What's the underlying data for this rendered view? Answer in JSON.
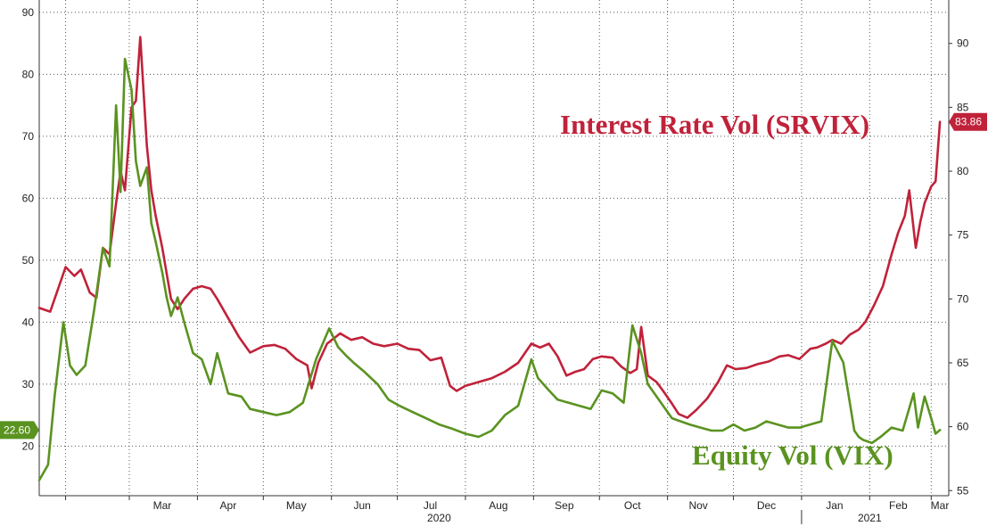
{
  "chart_data": {
    "type": "line",
    "title": "",
    "left_axis": {
      "ylim": [
        12,
        92
      ],
      "ticks": [
        "20",
        "30",
        "40",
        "50",
        "60",
        "70",
        "80",
        "90"
      ]
    },
    "right_axis": {
      "ylim": [
        54.6,
        93.4
      ],
      "ticks": [
        "55",
        "60",
        "65",
        "70",
        "75",
        "80",
        "85",
        "90"
      ]
    },
    "month_labels": [
      "Mar",
      "Apr",
      "May",
      "Jun",
      "Jul",
      "Aug",
      "Sep",
      "Oct",
      "Nov",
      "Dec",
      "Jan",
      "Feb",
      "Mar"
    ],
    "year_labels": [
      "2020",
      "2021"
    ],
    "grid": true,
    "series": [
      {
        "name": "Interest Rate Vol (SRVIX)",
        "axis": "right",
        "color": "#c0223a",
        "last_value_label": "83.86",
        "x": [
          "2020-01-20",
          "2020-01-25",
          "2020-02-01",
          "2020-02-05",
          "2020-02-08",
          "2020-02-12",
          "2020-02-15",
          "2020-02-18",
          "2020-02-21",
          "2020-02-24",
          "2020-02-26",
          "2020-02-28",
          "2020-03-02",
          "2020-03-04",
          "2020-03-06",
          "2020-03-09",
          "2020-03-11",
          "2020-03-13",
          "2020-03-16",
          "2020-03-18",
          "2020-03-20",
          "2020-03-23",
          "2020-03-26",
          "2020-03-30",
          "2020-04-03",
          "2020-04-07",
          "2020-04-10",
          "2020-04-15",
          "2020-04-20",
          "2020-04-25",
          "2020-05-01",
          "2020-05-06",
          "2020-05-11",
          "2020-05-16",
          "2020-05-21",
          "2020-05-23",
          "2020-05-26",
          "2020-05-30",
          "2020-06-05",
          "2020-06-10",
          "2020-06-15",
          "2020-06-20",
          "2020-06-25",
          "2020-07-01",
          "2020-07-06",
          "2020-07-11",
          "2020-07-16",
          "2020-07-21",
          "2020-07-25",
          "2020-07-28",
          "2020-08-01",
          "2020-08-07",
          "2020-08-13",
          "2020-08-19",
          "2020-08-25",
          "2020-08-31",
          "2020-09-04",
          "2020-09-08",
          "2020-09-12",
          "2020-09-16",
          "2020-09-20",
          "2020-09-24",
          "2020-09-28",
          "2020-10-02",
          "2020-10-07",
          "2020-10-11",
          "2020-10-15",
          "2020-10-18",
          "2020-10-20",
          "2020-10-23",
          "2020-10-27",
          "2020-10-30",
          "2020-11-03",
          "2020-11-06",
          "2020-11-10",
          "2020-11-14",
          "2020-11-19",
          "2020-11-24",
          "2020-11-28",
          "2020-12-02",
          "2020-12-07",
          "2020-12-12",
          "2020-12-17",
          "2020-12-22",
          "2020-12-26",
          "2020-12-31",
          "2021-01-05",
          "2021-01-08",
          "2021-01-12",
          "2021-01-15",
          "2021-01-19",
          "2021-01-23",
          "2021-01-27",
          "2021-01-30",
          "2021-02-03",
          "2021-02-07",
          "2021-02-11",
          "2021-02-14",
          "2021-02-17",
          "2021-02-19",
          "2021-02-22",
          "2021-02-24",
          "2021-02-26",
          "2021-03-01",
          "2021-03-03",
          "2021-03-05"
        ],
        "values": [
          69.3,
          69.0,
          72.5,
          71.8,
          72.3,
          70.5,
          70.1,
          74.0,
          73.5,
          77.5,
          80.0,
          78.5,
          85.0,
          85.5,
          90.5,
          82.0,
          78.5,
          76.5,
          74.0,
          72.0,
          70.0,
          69.2,
          70.0,
          70.8,
          71.0,
          70.8,
          70.0,
          68.5,
          67.0,
          65.8,
          66.3,
          66.4,
          66.1,
          65.3,
          64.8,
          63.0,
          65.0,
          66.5,
          67.3,
          66.8,
          67.0,
          66.5,
          66.3,
          66.5,
          66.1,
          66.0,
          65.2,
          65.4,
          63.2,
          62.8,
          63.2,
          63.5,
          63.8,
          64.3,
          65.0,
          66.5,
          66.2,
          66.5,
          65.5,
          64.0,
          64.3,
          64.5,
          65.3,
          65.5,
          65.4,
          64.7,
          64.2,
          64.5,
          67.8,
          64.0,
          63.5,
          62.8,
          61.8,
          61.0,
          60.7,
          61.3,
          62.2,
          63.5,
          64.8,
          64.5,
          64.6,
          64.9,
          65.1,
          65.5,
          65.6,
          65.3,
          66.1,
          66.2,
          66.5,
          66.8,
          66.5,
          67.2,
          67.6,
          68.2,
          69.5,
          71.0,
          73.5,
          75.2,
          76.5,
          78.5,
          74.0,
          76.0,
          77.5,
          78.8,
          79.2,
          83.86
        ]
      },
      {
        "name": "Equity Vol (VIX)",
        "axis": "left",
        "color": "#5a9320",
        "last_value_label": "22.60",
        "x": [
          "2020-01-20",
          "2020-01-24",
          "2020-01-27",
          "2020-01-31",
          "2020-02-03",
          "2020-02-06",
          "2020-02-10",
          "2020-02-14",
          "2020-02-18",
          "2020-02-21",
          "2020-02-24",
          "2020-02-26",
          "2020-02-28",
          "2020-03-02",
          "2020-03-04",
          "2020-03-06",
          "2020-03-09",
          "2020-03-11",
          "2020-03-13",
          "2020-03-16",
          "2020-03-18",
          "2020-03-20",
          "2020-03-23",
          "2020-03-26",
          "2020-03-30",
          "2020-04-03",
          "2020-04-07",
          "2020-04-10",
          "2020-04-15",
          "2020-04-21",
          "2020-04-25",
          "2020-05-01",
          "2020-05-07",
          "2020-05-13",
          "2020-05-19",
          "2020-05-25",
          "2020-05-31",
          "2020-06-04",
          "2020-06-08",
          "2020-06-11",
          "2020-06-16",
          "2020-06-22",
          "2020-06-27",
          "2020-07-02",
          "2020-07-08",
          "2020-07-14",
          "2020-07-20",
          "2020-07-26",
          "2020-08-01",
          "2020-08-07",
          "2020-08-13",
          "2020-08-19",
          "2020-08-25",
          "2020-08-31",
          "2020-09-03",
          "2020-09-08",
          "2020-09-12",
          "2020-09-17",
          "2020-09-22",
          "2020-09-27",
          "2020-10-02",
          "2020-10-07",
          "2020-10-12",
          "2020-10-16",
          "2020-10-20",
          "2020-10-23",
          "2020-10-28",
          "2020-10-30",
          "2020-11-03",
          "2020-11-07",
          "2020-11-11",
          "2020-11-16",
          "2020-11-21",
          "2020-11-26",
          "2020-12-01",
          "2020-12-06",
          "2020-12-11",
          "2020-12-16",
          "2020-12-21",
          "2020-12-26",
          "2020-12-31",
          "2021-01-05",
          "2021-01-10",
          "2021-01-15",
          "2021-01-20",
          "2021-01-25",
          "2021-01-27",
          "2021-01-29",
          "2021-02-02",
          "2021-02-06",
          "2021-02-11",
          "2021-02-16",
          "2021-02-21",
          "2021-02-23",
          "2021-02-26",
          "2021-03-01",
          "2021-03-03",
          "2021-03-05"
        ],
        "values": [
          14.5,
          17.0,
          28.0,
          40.0,
          33.0,
          31.5,
          33.0,
          42.0,
          52.0,
          49.0,
          75.0,
          61.0,
          82.5,
          77.5,
          66.0,
          62.0,
          65.0,
          56.0,
          53.0,
          48.0,
          44.0,
          41.0,
          44.0,
          40.0,
          35.0,
          34.0,
          30.0,
          35.0,
          28.5,
          28.0,
          26.0,
          25.5,
          25.0,
          25.5,
          27.0,
          34.0,
          39.0,
          36.0,
          34.5,
          33.5,
          32.0,
          30.0,
          27.5,
          26.5,
          25.5,
          24.5,
          23.5,
          22.8,
          22.0,
          21.5,
          22.5,
          25.0,
          26.5,
          34.0,
          31.0,
          29.0,
          27.5,
          27.0,
          26.5,
          26.0,
          29.0,
          28.5,
          27.0,
          39.5,
          35.0,
          30.0,
          27.5,
          26.5,
          24.5,
          24.0,
          23.5,
          23.0,
          22.5,
          22.5,
          23.5,
          22.5,
          23.0,
          24.0,
          23.5,
          23.0,
          23.0,
          23.5,
          24.0,
          37.0,
          33.5,
          22.5,
          21.5,
          21.0,
          20.5,
          21.5,
          23.0,
          22.5,
          28.5,
          23.0,
          28.0,
          24.5,
          22.0,
          22.6
        ]
      }
    ],
    "annotations": [
      {
        "text": "Interest Rate Vol (SRVIX)",
        "color": "#c0223a"
      },
      {
        "text": "Equity Vol (VIX)",
        "color": "#5a9320"
      }
    ]
  }
}
